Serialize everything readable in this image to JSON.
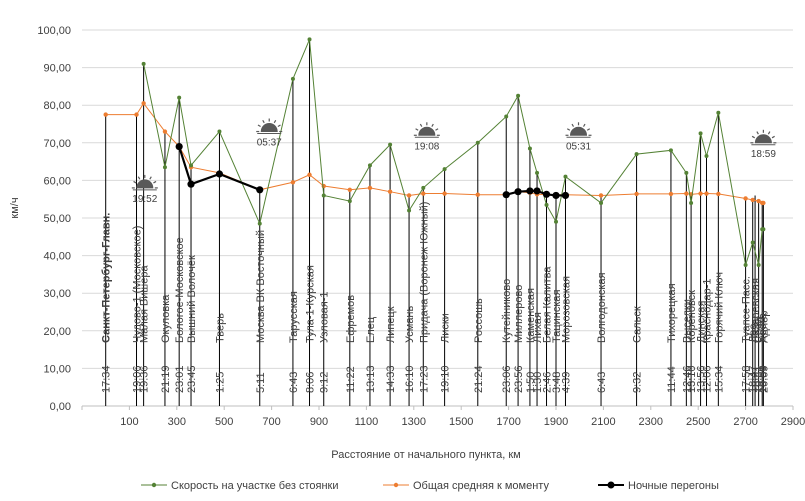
{
  "chart_data": {
    "type": "line",
    "title": "",
    "xlabel": "Расстояние от начального пункта, км",
    "ylabel": "км/ч",
    "xlim": [
      -100,
      2900
    ],
    "ylim": [
      0,
      100
    ],
    "x_ticks": [
      -100,
      100,
      300,
      500,
      700,
      900,
      1100,
      1300,
      1500,
      1700,
      1900,
      2100,
      2300,
      2500,
      2700,
      2900
    ],
    "x_tick_labels": [
      "-100",
      "100",
      "300",
      "500",
      "700",
      "900",
      "1100",
      "1300",
      "1500",
      "1700",
      "1900",
      "2100",
      "2300",
      "2500",
      "2700",
      "2900"
    ],
    "y_ticks": [
      0,
      10,
      20,
      30,
      40,
      50,
      60,
      70,
      80,
      90,
      100
    ],
    "y_tick_labels": [
      "0,00",
      "10,00",
      "20,00",
      "30,00",
      "40,00",
      "50,00",
      "60,00",
      "70,00",
      "80,00",
      "90,00",
      "100,00"
    ],
    "legend": [
      {
        "name": "Скорость на участке без стоянки",
        "color": "#548235"
      },
      {
        "name": "Общая средняя к моменту",
        "color": "#ed7d31"
      },
      {
        "name": "Ночные перегоны",
        "color": "#000000"
      }
    ],
    "series": [
      {
        "name": "Скорость на участке без стоянки",
        "color": "#548235",
        "x": [
          160,
          250,
          310,
          360,
          480,
          650,
          790,
          860,
          920,
          1030,
          1115,
          1200,
          1280,
          1340,
          1430,
          1570,
          1690,
          1740,
          1790,
          1820,
          1860,
          1900,
          1940,
          2090,
          2240,
          2385,
          2450,
          2470,
          2510,
          2535,
          2585,
          2700,
          2730,
          2755,
          2770,
          2775
        ],
        "y": [
          91,
          63.5,
          82,
          64,
          73,
          48.5,
          87,
          97.5,
          56,
          54.5,
          64,
          69.5,
          52,
          58,
          63,
          70,
          77,
          82.5,
          68.5,
          62,
          53.5,
          49,
          61,
          54,
          67,
          68,
          62,
          54,
          72.5,
          66.5,
          78,
          37.5,
          43.5,
          37.5,
          47,
          47
        ]
      },
      {
        "name": "Общая средняя к моменту",
        "color": "#ed7d31",
        "x": [
          0,
          130,
          160,
          250,
          310,
          360,
          480,
          650,
          790,
          860,
          920,
          1030,
          1115,
          1200,
          1280,
          1340,
          1430,
          1570,
          1690,
          1740,
          1790,
          1820,
          1860,
          1900,
          1940,
          2090,
          2240,
          2385,
          2450,
          2470,
          2510,
          2535,
          2585,
          2700,
          2730,
          2755,
          2770,
          2775
        ],
        "y": [
          77.5,
          77.5,
          80.5,
          73,
          69,
          63.5,
          62,
          57.5,
          59.5,
          61.5,
          58.5,
          57.5,
          58,
          57,
          56,
          56.5,
          56.5,
          56.2,
          56.2,
          57,
          56.7,
          56.3,
          56.2,
          56.2,
          56.2,
          56,
          56.4,
          56.4,
          56.5,
          56.3,
          56.5,
          56.5,
          56.4,
          55.2,
          54.8,
          54.5,
          54,
          54
        ]
      },
      {
        "name": "Ночные перегоны",
        "color": "#000000",
        "segments": [
          {
            "x": [
              310,
              360,
              480,
              650
            ],
            "y": [
              69,
              59,
              61.7,
              57.5
            ]
          },
          {
            "x": [
              1690,
              1740,
              1790,
              1820,
              1860,
              1900,
              1940
            ],
            "y": [
              56.2,
              57,
              57.2,
              57.2,
              56.3,
              56,
              56
            ]
          }
        ]
      }
    ],
    "stations": [
      {
        "name": "Санкт-Петербург-Главн.",
        "time": "17:34",
        "km": 0,
        "bold": true
      },
      {
        "name": "Чудово-1 (Московское)",
        "time": "19:06",
        "km": 130
      },
      {
        "name": "Малая Вишера",
        "time": "19:36",
        "km": 160
      },
      {
        "name": "Окуловка",
        "time": "21:19",
        "km": 250
      },
      {
        "name": "Бологое-Московское",
        "time": "23:01",
        "km": 310
      },
      {
        "name": "Вышний Волочёк",
        "time": "23:45",
        "km": 360
      },
      {
        "name": "Тверь",
        "time": "1:25",
        "km": 480
      },
      {
        "name": "Москва ВК Восточный",
        "time": "5:11",
        "km": 650
      },
      {
        "name": "Тарусская",
        "time": "6:43",
        "km": 790
      },
      {
        "name": "Тула-1-Курская",
        "time": "8:06",
        "km": 860
      },
      {
        "name": "Узловая-1",
        "time": "9:12",
        "km": 920
      },
      {
        "name": "Ефремов",
        "time": "11:22",
        "km": 1030
      },
      {
        "name": "Елец",
        "time": "13:13",
        "km": 1115
      },
      {
        "name": "Липецк",
        "time": "14:33",
        "km": 1200
      },
      {
        "name": "Усмань",
        "time": "16:10",
        "km": 1280
      },
      {
        "name": "Придача (Воронеж Южный)",
        "time": "17:23",
        "km": 1340
      },
      {
        "name": "Лиски",
        "time": "19:10",
        "km": 1430
      },
      {
        "name": "Россошь",
        "time": "21:24",
        "km": 1570
      },
      {
        "name": "Кутейниково",
        "time": "23:06",
        "km": 1690
      },
      {
        "name": "Миллерово",
        "time": "23:56",
        "km": 1740
      },
      {
        "name": "Каменская",
        "time": "1:50",
        "km": 1790
      },
      {
        "name": "Лихая",
        "time": "1:30",
        "km": 1820
      },
      {
        "name": "Белая Калитва",
        "time": "2:46",
        "km": 1860
      },
      {
        "name": "Тацинская",
        "time": "3:48",
        "km": 1900
      },
      {
        "name": "Морозовская",
        "time": "4:39",
        "km": 1940
      },
      {
        "name": "Волгодонская",
        "time": "6:43",
        "km": 2090
      },
      {
        "name": "Сальск",
        "time": "9:32",
        "km": 2240
      },
      {
        "name": "Тихорецкая",
        "time": "11:44",
        "km": 2385
      },
      {
        "name": "Выселки",
        "time": "12:46",
        "km": 2450
      },
      {
        "name": "Кореновск",
        "time": "13:10",
        "km": 2470
      },
      {
        "name": "Динская",
        "time": "13:56",
        "km": 2510
      },
      {
        "name": "Краснодар-1",
        "time": "12:06",
        "km": 2535
      },
      {
        "name": "Горячий Ключ",
        "time": "15:34",
        "km": 2585
      },
      {
        "name": "Туапсе-Пасс.",
        "time": "17:58",
        "km": 2700
      },
      {
        "name": "Лоо",
        "time": "18:47",
        "km": 2730
      },
      {
        "name": "Лазаревская",
        "time": "18:21",
        "km": 2740
      },
      {
        "name": "Сочи",
        "time": "19:31",
        "km": 2755
      },
      {
        "name": "Хоста",
        "time": "19:59",
        "km": 2770
      },
      {
        "name": "Адлер",
        "time": "20:09",
        "km": 2775
      }
    ],
    "annotations": [
      {
        "text": "19:52",
        "kind": "sunset",
        "km": 165,
        "y": 58
      },
      {
        "text": "05:37",
        "kind": "sunrise",
        "km": 690,
        "y": 73
      },
      {
        "text": "19:08",
        "kind": "sunset",
        "km": 1355,
        "y": 72
      },
      {
        "text": "05:31",
        "kind": "sunrise",
        "km": 1995,
        "y": 72
      },
      {
        "text": "18:59",
        "kind": "sunset",
        "km": 2775,
        "y": 70
      }
    ]
  }
}
